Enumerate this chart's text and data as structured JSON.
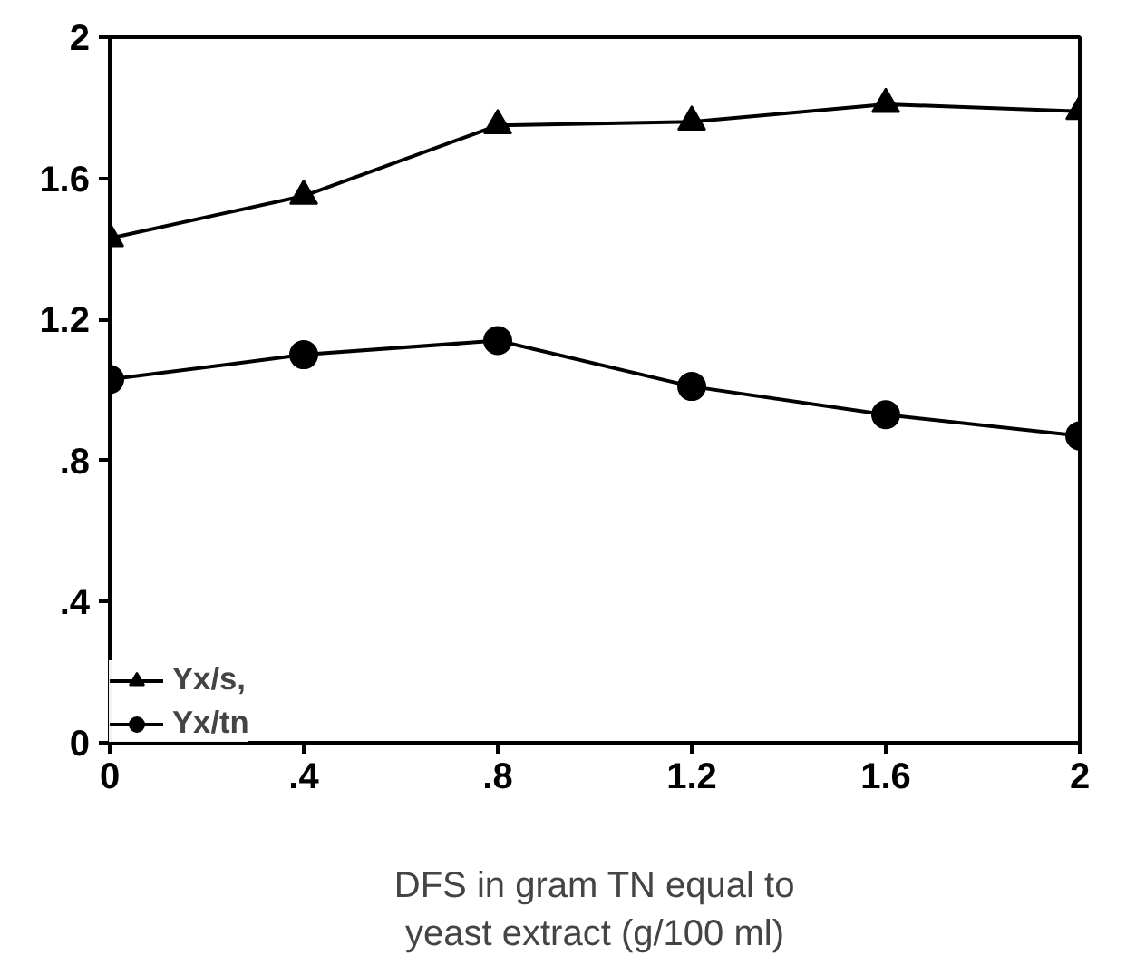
{
  "chart_data": {
    "type": "line",
    "xlabel": "DFS in gram TN equal to\nyeast extract (g/100 ml)",
    "x": [
      0,
      0.4,
      0.8,
      1.2,
      1.6,
      2
    ],
    "series": [
      {
        "name": "Yx/s,",
        "color": "#000000",
        "marker": "triangle",
        "values": [
          1.43,
          1.55,
          1.75,
          1.76,
          1.81,
          1.79
        ]
      },
      {
        "name": "Yx/tn",
        "color": "#000000",
        "marker": "circle",
        "values": [
          1.03,
          1.1,
          1.14,
          1.01,
          0.93,
          0.87
        ]
      }
    ],
    "xlim": [
      0,
      2
    ],
    "ylim": [
      0,
      2
    ],
    "xticks": [
      0,
      {
        "value": 0.4,
        "label": ".4"
      },
      {
        "value": 0.8,
        "label": ".8"
      },
      1.2,
      1.6,
      2
    ],
    "yticks": [
      0,
      {
        "value": 0.4,
        "label": ".4"
      },
      {
        "value": 0.8,
        "label": ".8"
      },
      1.2,
      1.6,
      2
    ],
    "grid": false,
    "legend": "bottom left",
    "line_style": "solid"
  }
}
